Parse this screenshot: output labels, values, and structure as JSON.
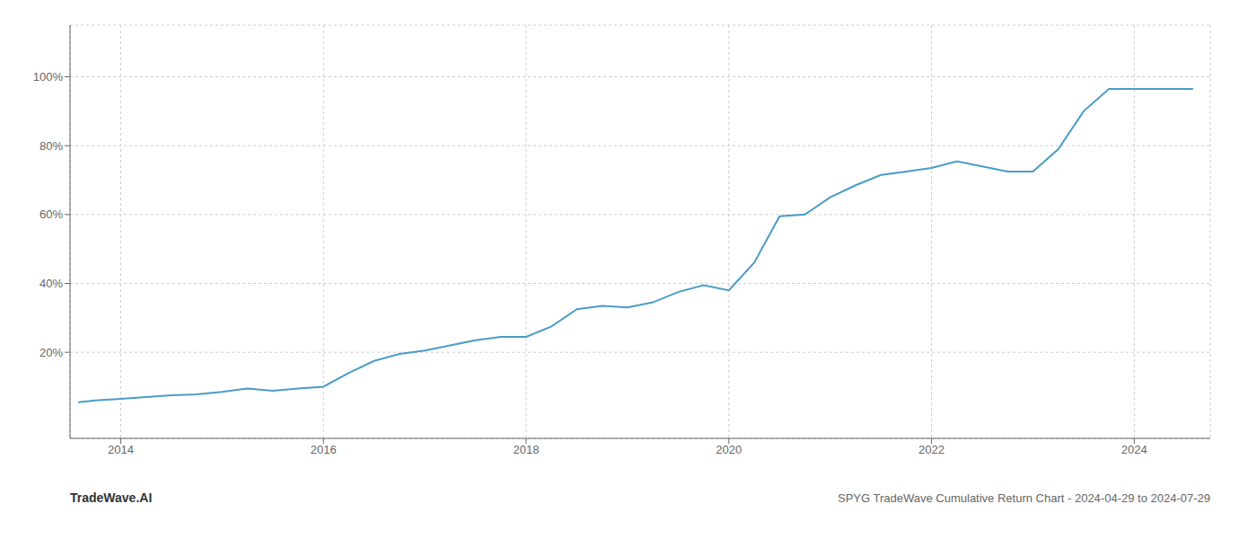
{
  "chart_data": {
    "type": "line",
    "title": "SPYG TradeWave Cumulative Return Chart - 2024-04-29 to 2024-07-29",
    "annotations": [
      "TradeWave.AI"
    ],
    "x": [
      2013.58,
      2013.75,
      2014.0,
      2014.25,
      2014.5,
      2014.75,
      2015.0,
      2015.25,
      2015.5,
      2015.75,
      2016.0,
      2016.25,
      2016.5,
      2016.75,
      2017.0,
      2017.25,
      2017.5,
      2017.75,
      2018.0,
      2018.25,
      2018.5,
      2018.75,
      2019.0,
      2019.25,
      2019.5,
      2019.75,
      2020.0,
      2020.25,
      2020.5,
      2020.75,
      2021.0,
      2021.25,
      2021.5,
      2021.75,
      2022.0,
      2022.25,
      2022.5,
      2022.75,
      2023.0,
      2023.25,
      2023.5,
      2023.75,
      2024.0,
      2024.33,
      2024.58
    ],
    "values": [
      5.5,
      6.0,
      6.5,
      7.0,
      7.5,
      7.8,
      8.5,
      9.5,
      8.8,
      9.5,
      10.0,
      14.0,
      17.5,
      19.5,
      20.5,
      22.0,
      23.5,
      24.5,
      24.5,
      27.5,
      32.5,
      33.5,
      33.0,
      34.5,
      37.5,
      39.5,
      38.0,
      46.0,
      59.5,
      60.0,
      65.0,
      68.5,
      71.5,
      72.5,
      73.5,
      75.5,
      74.0,
      72.5,
      72.5,
      79.0,
      90.0,
      96.5,
      96.5,
      96.5,
      96.5
    ],
    "color": "#4a9cc7",
    "xlim": [
      2013.5,
      2024.75
    ],
    "xticks": [
      2014,
      2016,
      2018,
      2020,
      2022,
      2024
    ],
    "ylim": [
      -5,
      115
    ],
    "yticks": [
      {
        "value": 20,
        "label": "20%"
      },
      {
        "value": 40,
        "label": "40%"
      },
      {
        "value": 60,
        "label": "60%"
      },
      {
        "value": 80,
        "label": "80%"
      },
      {
        "value": 100,
        "label": "100%"
      }
    ],
    "grid": true
  }
}
